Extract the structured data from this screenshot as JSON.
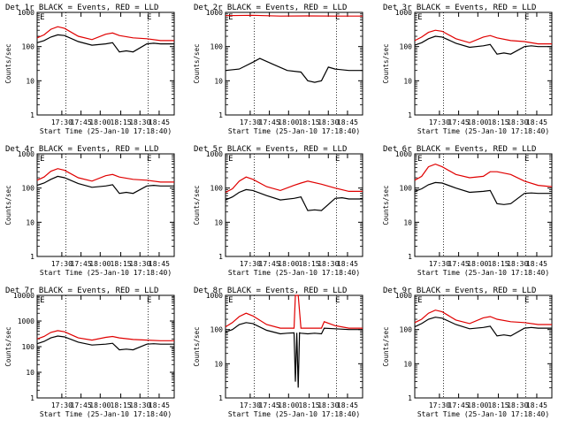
{
  "chart_data": [
    {
      "type": "line",
      "title": "Det 1r BLACK = Events, RED = LLD",
      "xlabel": "Start Time (25-Jan-10 17:18:40)",
      "ylabel": "Counts/sec",
      "yscale": "log",
      "ylim": [
        1,
        1000
      ],
      "ytick_labels": [
        "1",
        "10",
        "100",
        "1000"
      ],
      "xtick_labels": [
        "17:30",
        "17:45",
        "18:00",
        "18:15",
        "18:30",
        "18:45"
      ],
      "markers": [
        "E",
        "E"
      ],
      "series": [
        {
          "color": "#000000",
          "x": [
            0,
            0.05,
            0.1,
            0.15,
            0.2,
            0.3,
            0.4,
            0.5,
            0.55,
            0.6,
            0.65,
            0.7,
            0.8,
            0.85,
            0.9,
            1
          ],
          "y": [
            130,
            150,
            190,
            220,
            210,
            140,
            110,
            120,
            130,
            70,
            75,
            70,
            120,
            125,
            120,
            120
          ]
        },
        {
          "color": "#e00000",
          "x": [
            0,
            0.05,
            0.1,
            0.15,
            0.2,
            0.3,
            0.4,
            0.5,
            0.55,
            0.6,
            0.7,
            0.8,
            0.9,
            1
          ],
          "y": [
            180,
            220,
            320,
            380,
            340,
            200,
            160,
            230,
            250,
            210,
            180,
            170,
            150,
            150
          ]
        }
      ]
    },
    {
      "type": "line",
      "title": "Det 2r BLACK = Events, RED = LLD",
      "xlabel": "Start Time (25-Jan-10 17:18:40)",
      "ylabel": "Counts/sec",
      "yscale": "log",
      "ylim": [
        1,
        1000
      ],
      "ytick_labels": [
        "1",
        "10",
        "100",
        "1000"
      ],
      "xtick_labels": [
        "17:30",
        "17:45",
        "18:00",
        "18:15",
        "18:30",
        "18:45"
      ],
      "markers": [
        "E",
        "E"
      ],
      "series": [
        {
          "color": "#000000",
          "x": [
            0,
            0.1,
            0.2,
            0.25,
            0.35,
            0.45,
            0.55,
            0.6,
            0.65,
            0.7,
            0.75,
            0.8,
            0.9,
            1
          ],
          "y": [
            20,
            22,
            35,
            45,
            30,
            20,
            18,
            10,
            9,
            10,
            25,
            22,
            20,
            20
          ]
        },
        {
          "color": "#e00000",
          "x": [
            0,
            0.2,
            0.4,
            0.6,
            0.8,
            1
          ],
          "y": [
            800,
            820,
            780,
            790,
            780,
            780
          ]
        }
      ]
    },
    {
      "type": "line",
      "title": "Det 3r BLACK = Events, RED = LLD",
      "xlabel": "Start Time (25-Jan-10 17:18:40)",
      "ylabel": "Counts/sec",
      "yscale": "log",
      "ylim": [
        1,
        1000
      ],
      "ytick_labels": [
        "1",
        "10",
        "100",
        "1000"
      ],
      "xtick_labels": [
        "17:30",
        "17:45",
        "18:00",
        "18:15",
        "18:30",
        "18:45"
      ],
      "markers": [
        "E",
        "E"
      ],
      "series": [
        {
          "color": "#000000",
          "x": [
            0,
            0.05,
            0.1,
            0.15,
            0.2,
            0.3,
            0.4,
            0.5,
            0.55,
            0.6,
            0.65,
            0.7,
            0.8,
            0.85,
            0.9,
            1
          ],
          "y": [
            110,
            130,
            170,
            200,
            190,
            125,
            95,
            105,
            115,
            60,
            65,
            60,
            100,
            105,
            100,
            100
          ]
        },
        {
          "color": "#e00000",
          "x": [
            0,
            0.05,
            0.1,
            0.15,
            0.2,
            0.3,
            0.4,
            0.5,
            0.55,
            0.6,
            0.7,
            0.8,
            0.9,
            1
          ],
          "y": [
            150,
            190,
            260,
            300,
            280,
            170,
            130,
            190,
            210,
            180,
            150,
            140,
            120,
            120
          ]
        }
      ]
    },
    {
      "type": "line",
      "title": "Det 4r BLACK = Events, RED = LLD",
      "xlabel": "Start Time (25-Jan-10 17:18:40)",
      "ylabel": "Counts/sec",
      "yscale": "log",
      "ylim": [
        1,
        1000
      ],
      "ytick_labels": [
        "1",
        "10",
        "100",
        "1000"
      ],
      "xtick_labels": [
        "17:30",
        "17:45",
        "18:00",
        "18:15",
        "18:30",
        "18:45"
      ],
      "markers": [
        "E",
        "E"
      ],
      "series": [
        {
          "color": "#000000",
          "x": [
            0,
            0.05,
            0.1,
            0.15,
            0.2,
            0.3,
            0.4,
            0.5,
            0.55,
            0.6,
            0.65,
            0.7,
            0.8,
            0.85,
            0.9,
            1
          ],
          "y": [
            120,
            140,
            180,
            220,
            200,
            135,
            105,
            115,
            125,
            70,
            75,
            70,
            115,
            120,
            115,
            115
          ]
        },
        {
          "color": "#e00000",
          "x": [
            0,
            0.05,
            0.1,
            0.15,
            0.2,
            0.3,
            0.4,
            0.5,
            0.55,
            0.6,
            0.7,
            0.8,
            0.9,
            1
          ],
          "y": [
            170,
            210,
            310,
            370,
            330,
            200,
            160,
            230,
            250,
            210,
            180,
            170,
            150,
            150
          ]
        }
      ]
    },
    {
      "type": "line",
      "title": "Det 5r BLACK = Events, RED = LLD",
      "xlabel": "Start Time (25-Jan-10 17:18:40)",
      "ylabel": "Counts/sec",
      "yscale": "log",
      "ylim": [
        1,
        1000
      ],
      "ytick_labels": [
        "1",
        "10",
        "100",
        "1000"
      ],
      "xtick_labels": [
        "17:30",
        "17:45",
        "18:00",
        "18:15",
        "18:30",
        "18:45"
      ],
      "markers": [
        "E",
        "E"
      ],
      "series": [
        {
          "color": "#000000",
          "x": [
            0,
            0.05,
            0.1,
            0.15,
            0.2,
            0.3,
            0.4,
            0.5,
            0.55,
            0.6,
            0.65,
            0.7,
            0.8,
            0.85,
            0.9,
            1
          ],
          "y": [
            45,
            55,
            75,
            90,
            85,
            60,
            45,
            50,
            55,
            22,
            23,
            22,
            50,
            52,
            48,
            48
          ]
        },
        {
          "color": "#e00000",
          "x": [
            0,
            0.05,
            0.1,
            0.15,
            0.2,
            0.3,
            0.4,
            0.5,
            0.55,
            0.6,
            0.7,
            0.8,
            0.9,
            1
          ],
          "y": [
            75,
            95,
            160,
            210,
            180,
            110,
            85,
            120,
            140,
            160,
            130,
            100,
            80,
            80
          ]
        }
      ]
    },
    {
      "type": "line",
      "title": "Det 6r BLACK = Events, RED = LLD",
      "xlabel": "Start Time (25-Jan-10 17:18:40)",
      "ylabel": "Counts/sec",
      "yscale": "log",
      "ylim": [
        1,
        1000
      ],
      "ytick_labels": [
        "1",
        "10",
        "100",
        "1000"
      ],
      "xtick_labels": [
        "17:30",
        "17:45",
        "18:00",
        "18:15",
        "18:30",
        "18:45"
      ],
      "markers": [
        "E",
        "E"
      ],
      "series": [
        {
          "color": "#000000",
          "x": [
            0,
            0.05,
            0.1,
            0.15,
            0.2,
            0.3,
            0.4,
            0.5,
            0.55,
            0.6,
            0.65,
            0.7,
            0.8,
            0.85,
            0.9,
            1
          ],
          "y": [
            80,
            95,
            125,
            145,
            140,
            100,
            75,
            80,
            85,
            35,
            33,
            35,
            70,
            72,
            70,
            70
          ]
        },
        {
          "color": "#e00000",
          "x": [
            0,
            0.05,
            0.1,
            0.15,
            0.2,
            0.3,
            0.4,
            0.5,
            0.55,
            0.6,
            0.7,
            0.8,
            0.9,
            1
          ],
          "y": [
            170,
            220,
            420,
            500,
            420,
            250,
            200,
            220,
            300,
            300,
            250,
            160,
            120,
            110
          ]
        }
      ]
    },
    {
      "type": "line",
      "title": "Det 7r BLACK = Events, RED = LLD",
      "xlabel": "Start Time (25-Jan-10 17:18:40)",
      "ylabel": "Counts/sec",
      "yscale": "log",
      "ylim": [
        1,
        10000
      ],
      "ytick_labels": [
        "1",
        "10",
        "100",
        "1000",
        "10000"
      ],
      "xtick_labels": [
        "17:30",
        "17:45",
        "18:00",
        "18:15",
        "18:30",
        "18:45"
      ],
      "markers": [
        "E",
        "E"
      ],
      "series": [
        {
          "color": "#000000",
          "x": [
            0,
            0.05,
            0.1,
            0.15,
            0.2,
            0.3,
            0.4,
            0.5,
            0.55,
            0.6,
            0.65,
            0.7,
            0.8,
            0.85,
            0.9,
            1
          ],
          "y": [
            130,
            160,
            220,
            260,
            240,
            150,
            115,
            125,
            135,
            75,
            80,
            75,
            125,
            130,
            125,
            125
          ]
        },
        {
          "color": "#e00000",
          "x": [
            0,
            0.05,
            0.1,
            0.15,
            0.2,
            0.3,
            0.4,
            0.5,
            0.55,
            0.6,
            0.7,
            0.8,
            0.9,
            1
          ],
          "y": [
            200,
            250,
            360,
            420,
            380,
            220,
            180,
            230,
            250,
            220,
            190,
            180,
            170,
            170
          ]
        }
      ]
    },
    {
      "type": "line",
      "title": "Det 8r BLACK = Events, RED = LLD",
      "xlabel": "Start Time (25-Jan-10 17:18:40)",
      "ylabel": "Counts/sec",
      "yscale": "log",
      "ylim": [
        1,
        1000
      ],
      "ytick_labels": [
        "1",
        "10",
        "100",
        "1000"
      ],
      "xtick_labels": [
        "17:30",
        "17:45",
        "18:00",
        "18:15",
        "18:30",
        "18:45"
      ],
      "markers": [
        "E",
        "E"
      ],
      "series": [
        {
          "color": "#000000",
          "x": [
            0,
            0.05,
            0.1,
            0.15,
            0.2,
            0.3,
            0.4,
            0.45,
            0.5,
            0.51,
            0.52,
            0.53,
            0.54,
            0.55,
            0.6,
            0.65,
            0.7,
            0.72,
            0.8,
            0.9,
            1
          ],
          "y": [
            85,
            100,
            140,
            160,
            150,
            95,
            75,
            78,
            80,
            3,
            80,
            2,
            80,
            78,
            75,
            78,
            75,
            110,
            105,
            100,
            100
          ]
        },
        {
          "color": "#e00000",
          "x": [
            0,
            0.05,
            0.1,
            0.15,
            0.2,
            0.3,
            0.4,
            0.45,
            0.5,
            0.51,
            0.53,
            0.55,
            0.6,
            0.65,
            0.7,
            0.72,
            0.8,
            0.9,
            1
          ],
          "y": [
            120,
            160,
            240,
            300,
            250,
            140,
            110,
            110,
            110,
            1000,
            1000,
            110,
            110,
            110,
            110,
            170,
            130,
            110,
            110
          ]
        }
      ]
    },
    {
      "type": "line",
      "title": "Det 9r BLACK = Events, RED = LLD",
      "xlabel": "Start Time (25-Jan-10 17:18:40)",
      "ylabel": "Counts/sec",
      "yscale": "log",
      "ylim": [
        1,
        1000
      ],
      "ytick_labels": [
        "1",
        "10",
        "100",
        "1000"
      ],
      "xtick_labels": [
        "17:30",
        "17:45",
        "18:00",
        "18:15",
        "18:30",
        "18:45"
      ],
      "markers": [
        "E",
        "E"
      ],
      "series": [
        {
          "color": "#000000",
          "x": [
            0,
            0.05,
            0.1,
            0.15,
            0.2,
            0.3,
            0.4,
            0.5,
            0.55,
            0.6,
            0.65,
            0.7,
            0.8,
            0.85,
            0.9,
            1
          ],
          "y": [
            120,
            150,
            200,
            230,
            215,
            140,
            105,
            115,
            125,
            65,
            70,
            65,
            110,
            115,
            110,
            110
          ]
        },
        {
          "color": "#e00000",
          "x": [
            0,
            0.05,
            0.1,
            0.15,
            0.2,
            0.3,
            0.4,
            0.5,
            0.55,
            0.6,
            0.7,
            0.8,
            0.9,
            1
          ],
          "y": [
            160,
            200,
            300,
            370,
            330,
            190,
            150,
            220,
            240,
            200,
            170,
            160,
            140,
            140
          ]
        }
      ]
    }
  ]
}
